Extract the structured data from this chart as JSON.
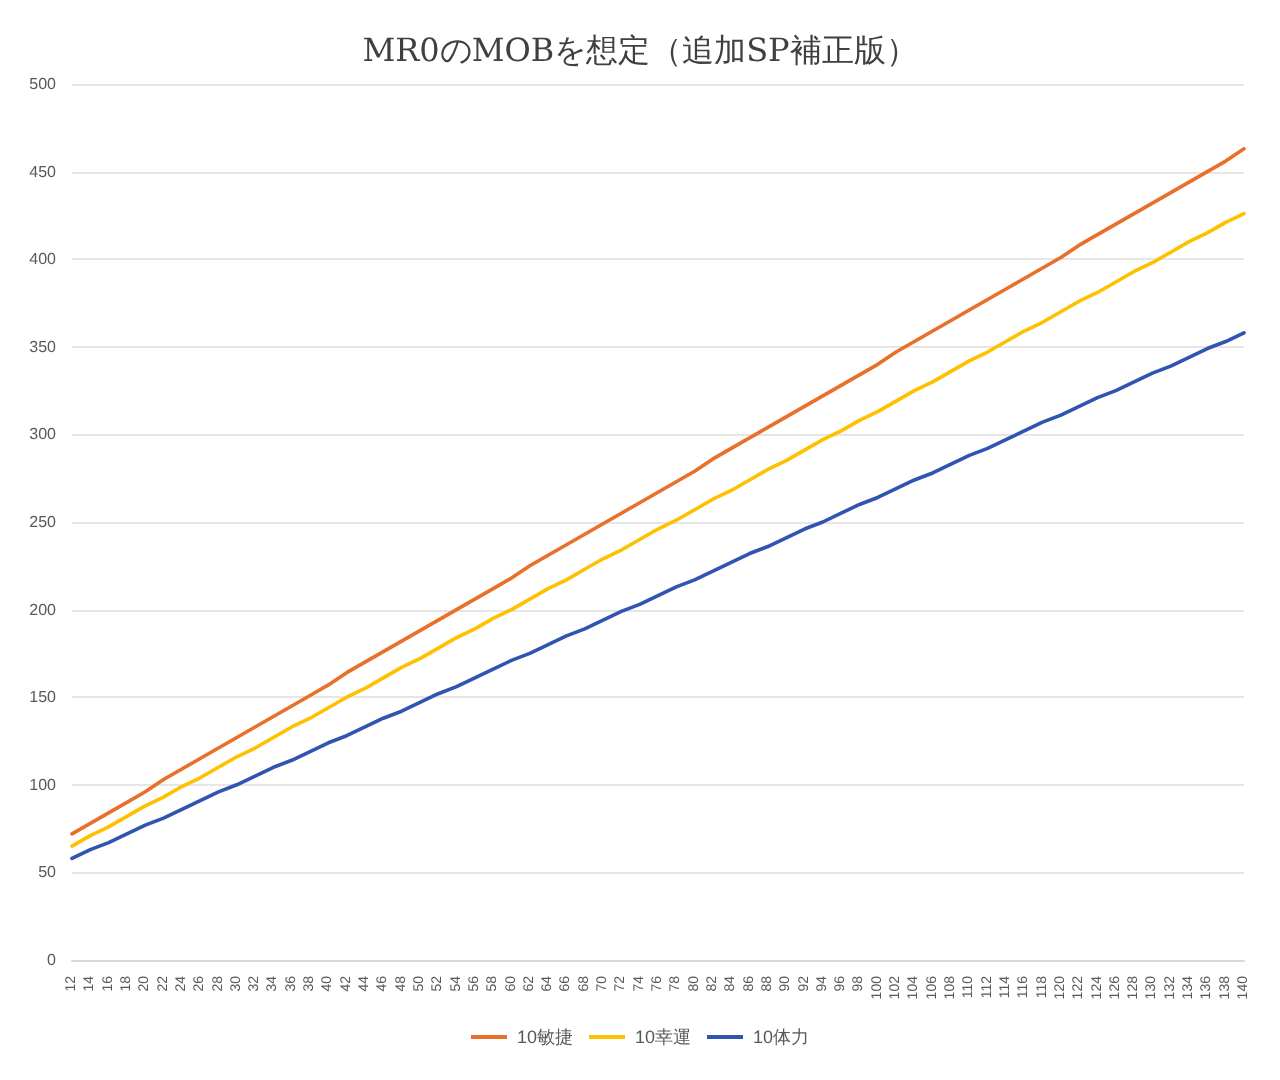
{
  "chart_data": {
    "type": "line",
    "title": "MR0のMOBを想定（追加SP補正版）",
    "categories": [
      "12",
      "14",
      "16",
      "18",
      "20",
      "22",
      "24",
      "26",
      "28",
      "30",
      "32",
      "34",
      "36",
      "38",
      "40",
      "42",
      "44",
      "46",
      "48",
      "50",
      "52",
      "54",
      "56",
      "58",
      "60",
      "62",
      "64",
      "66",
      "68",
      "70",
      "72",
      "74",
      "76",
      "78",
      "80",
      "82",
      "84",
      "86",
      "88",
      "90",
      "92",
      "94",
      "96",
      "98",
      "100",
      "102",
      "104",
      "106",
      "108",
      "110",
      "112",
      "114",
      "116",
      "118",
      "120",
      "122",
      "124",
      "126",
      "128",
      "130",
      "132",
      "134",
      "136",
      "138",
      "140"
    ],
    "series": [
      {
        "name": "10敏捷",
        "color": "#e8702a",
        "values": [
          72,
          78,
          84,
          90,
          96,
          103,
          109,
          115,
          121,
          127,
          133,
          139,
          145,
          151,
          157,
          164,
          170,
          176,
          182,
          188,
          194,
          200,
          206,
          212,
          218,
          225,
          231,
          237,
          243,
          249,
          255,
          261,
          267,
          273,
          279,
          286,
          292,
          298,
          304,
          310,
          316,
          322,
          328,
          334,
          340,
          347,
          353,
          359,
          365,
          371,
          377,
          383,
          389,
          395,
          401,
          408,
          414,
          420,
          426,
          432,
          438,
          444,
          450,
          456,
          463
        ]
      },
      {
        "name": "10幸運",
        "color": "#ffc000",
        "values": [
          65,
          71,
          76,
          82,
          88,
          93,
          99,
          104,
          110,
          116,
          121,
          127,
          133,
          138,
          144,
          150,
          155,
          161,
          167,
          172,
          178,
          184,
          189,
          195,
          200,
          206,
          212,
          217,
          223,
          229,
          234,
          240,
          246,
          251,
          257,
          263,
          268,
          274,
          280,
          285,
          291,
          297,
          302,
          308,
          313,
          319,
          325,
          330,
          336,
          342,
          347,
          353,
          359,
          364,
          370,
          376,
          381,
          387,
          393,
          398,
          404,
          410,
          415,
          421,
          426
        ]
      },
      {
        "name": "10体力",
        "color": "#2f55b0",
        "values": [
          58,
          63,
          67,
          72,
          77,
          81,
          86,
          91,
          96,
          100,
          105,
          110,
          114,
          119,
          124,
          128,
          133,
          138,
          142,
          147,
          152,
          156,
          161,
          166,
          171,
          175,
          180,
          185,
          189,
          194,
          199,
          203,
          208,
          213,
          217,
          222,
          227,
          232,
          236,
          241,
          246,
          250,
          255,
          260,
          264,
          269,
          274,
          278,
          283,
          288,
          292,
          297,
          302,
          307,
          311,
          316,
          321,
          325,
          330,
          335,
          339,
          344,
          349,
          353,
          358
        ]
      }
    ],
    "ylim": [
      0,
      500
    ],
    "yticks": [
      0,
      50,
      100,
      150,
      200,
      250,
      300,
      350,
      400,
      450,
      500
    ],
    "grid": "y",
    "legend": "bottom",
    "marker": "none",
    "line_style": "solid"
  }
}
